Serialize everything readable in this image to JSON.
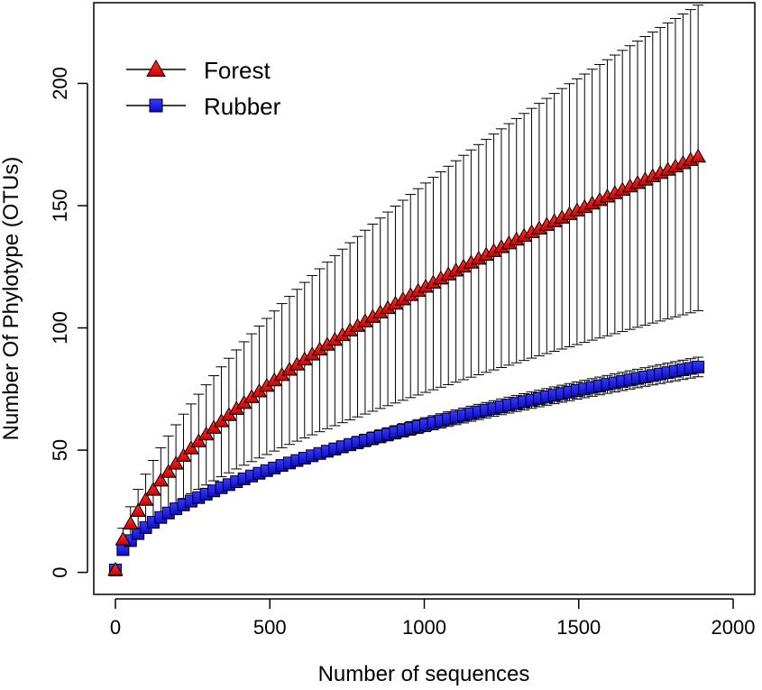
{
  "chart_data": {
    "type": "line",
    "title": "",
    "xlabel": "Number of sequences",
    "ylabel": "Number Of Phylotype (OTUs)",
    "xlim": [
      -70,
      2070
    ],
    "ylim": [
      -9,
      233
    ],
    "x_ticks": [
      "0",
      "500",
      "1000",
      "1500",
      "2000"
    ],
    "y_ticks": [
      "0",
      "50",
      "100",
      "150",
      "200"
    ],
    "x_tick_values": [
      0,
      500,
      1000,
      1500,
      2000
    ],
    "y_tick_values": [
      0,
      50,
      100,
      150,
      200
    ],
    "grid": false,
    "legend_position": "top-left",
    "x_start": 0,
    "x_step": 24.5,
    "points": 78,
    "series": [
      {
        "name": "Forest",
        "marker": "triangle",
        "color": "#e8191b",
        "final_value": 170,
        "error_upper_final": 232,
        "error_lower_final": 107,
        "curve_power": 0.6,
        "first_value": 1
      },
      {
        "name": "Rubber",
        "marker": "square",
        "color": "#1515e6",
        "final_value": 84,
        "error_upper_final": 88,
        "error_lower_final": 80,
        "curve_power": 0.53,
        "first_value": 1
      }
    ]
  }
}
